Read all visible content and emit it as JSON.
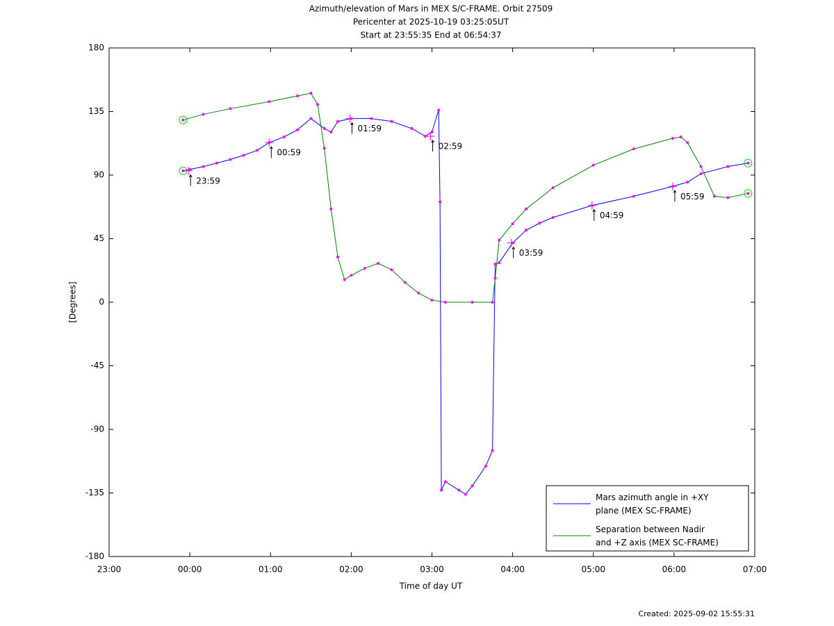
{
  "chart_data": {
    "type": "line",
    "title": [
      "Azimuth/elevation of Mars in MEX S/C-FRAME.  Orbit 27509",
      "Pericenter at 2025-10-19 03:25:05UT",
      "Start at 23:55:35 End at 06:54:37"
    ],
    "xlabel": "Time of day UT",
    "ylabel": "[Degrees]",
    "footer": "Created: 2025-09-02 15:55:31",
    "xlim": [
      "23:00",
      "07:00"
    ],
    "xticks": [
      "23:00",
      "00:00",
      "01:00",
      "02:00",
      "03:00",
      "04:00",
      "05:00",
      "06:00",
      "07:00"
    ],
    "ylim": [
      -180,
      180
    ],
    "yticks": [
      -180,
      -135,
      -90,
      -45,
      0,
      45,
      90,
      135,
      180
    ],
    "legend_position": "lower right",
    "series": [
      {
        "name": "Mars azimuth angle in +XY\nplane (MEX SC-FRAME)",
        "color": "#0000ff",
        "x": [
          "23:55",
          "00:00",
          "00:10",
          "00:20",
          "00:30",
          "00:40",
          "00:50",
          "00:59",
          "01:10",
          "01:20",
          "01:30",
          "01:40",
          "01:45",
          "01:50",
          "02:00",
          "02:15",
          "02:30",
          "02:45",
          "02:55",
          "03:00",
          "03:05",
          "03:06",
          "03:07",
          "03:10",
          "03:20",
          "03:25",
          "03:30",
          "03:40",
          "03:45",
          "03:47",
          "03:50",
          "04:00",
          "04:10",
          "04:20",
          "04:30",
          "04:59",
          "05:30",
          "05:59",
          "06:10",
          "06:20",
          "06:40",
          "06:55"
        ],
        "values": [
          93,
          94,
          96,
          98.5,
          101,
          104,
          107.5,
          113,
          117,
          122,
          130,
          123,
          120.5,
          128,
          130,
          130,
          128,
          123,
          117.5,
          120.5,
          136,
          71,
          -133,
          -127,
          -133,
          -136,
          -130,
          -116,
          -105,
          27,
          28,
          42,
          51,
          56,
          60,
          68.5,
          75,
          82,
          85,
          91,
          96,
          98.5
        ]
      },
      {
        "name": "Separation between Nadir\nand +Z axis (MEX SC-FRAME)",
        "color": "#008000",
        "x": [
          "23:55",
          "00:10",
          "00:30",
          "00:59",
          "01:20",
          "01:30",
          "01:35",
          "01:40",
          "01:45",
          "01:50",
          "01:55",
          "02:00",
          "02:10",
          "02:20",
          "02:30",
          "02:40",
          "02:50",
          "03:00",
          "03:10",
          "03:30",
          "03:45",
          "03:47",
          "03:50",
          "04:00",
          "04:10",
          "04:30",
          "05:00",
          "05:30",
          "05:59",
          "06:05",
          "06:10",
          "06:20",
          "06:30",
          "06:40",
          "06:55"
        ],
        "values": [
          129,
          133,
          137,
          142,
          146,
          148,
          140,
          109,
          66,
          32,
          16,
          19,
          24,
          27.5,
          23,
          14,
          6.5,
          1.5,
          0,
          0,
          0,
          17,
          44,
          55.5,
          66,
          81,
          97,
          108.5,
          116,
          117,
          113,
          96,
          75,
          74,
          77
        ]
      }
    ],
    "annotations": [
      {
        "text": "23:59",
        "x": "23:59",
        "y": 93
      },
      {
        "text": "00:59",
        "x": "00:59",
        "y": 113
      },
      {
        "text": "01:59",
        "x": "01:59",
        "y": 130
      },
      {
        "text": "02:59",
        "x": "02:59",
        "y": 117.5
      },
      {
        "text": "03:59",
        "x": "03:59",
        "y": 42
      },
      {
        "text": "04:59",
        "x": "04:59",
        "y": 68.5
      },
      {
        "text": "05:59",
        "x": "05:59",
        "y": 82
      }
    ]
  }
}
